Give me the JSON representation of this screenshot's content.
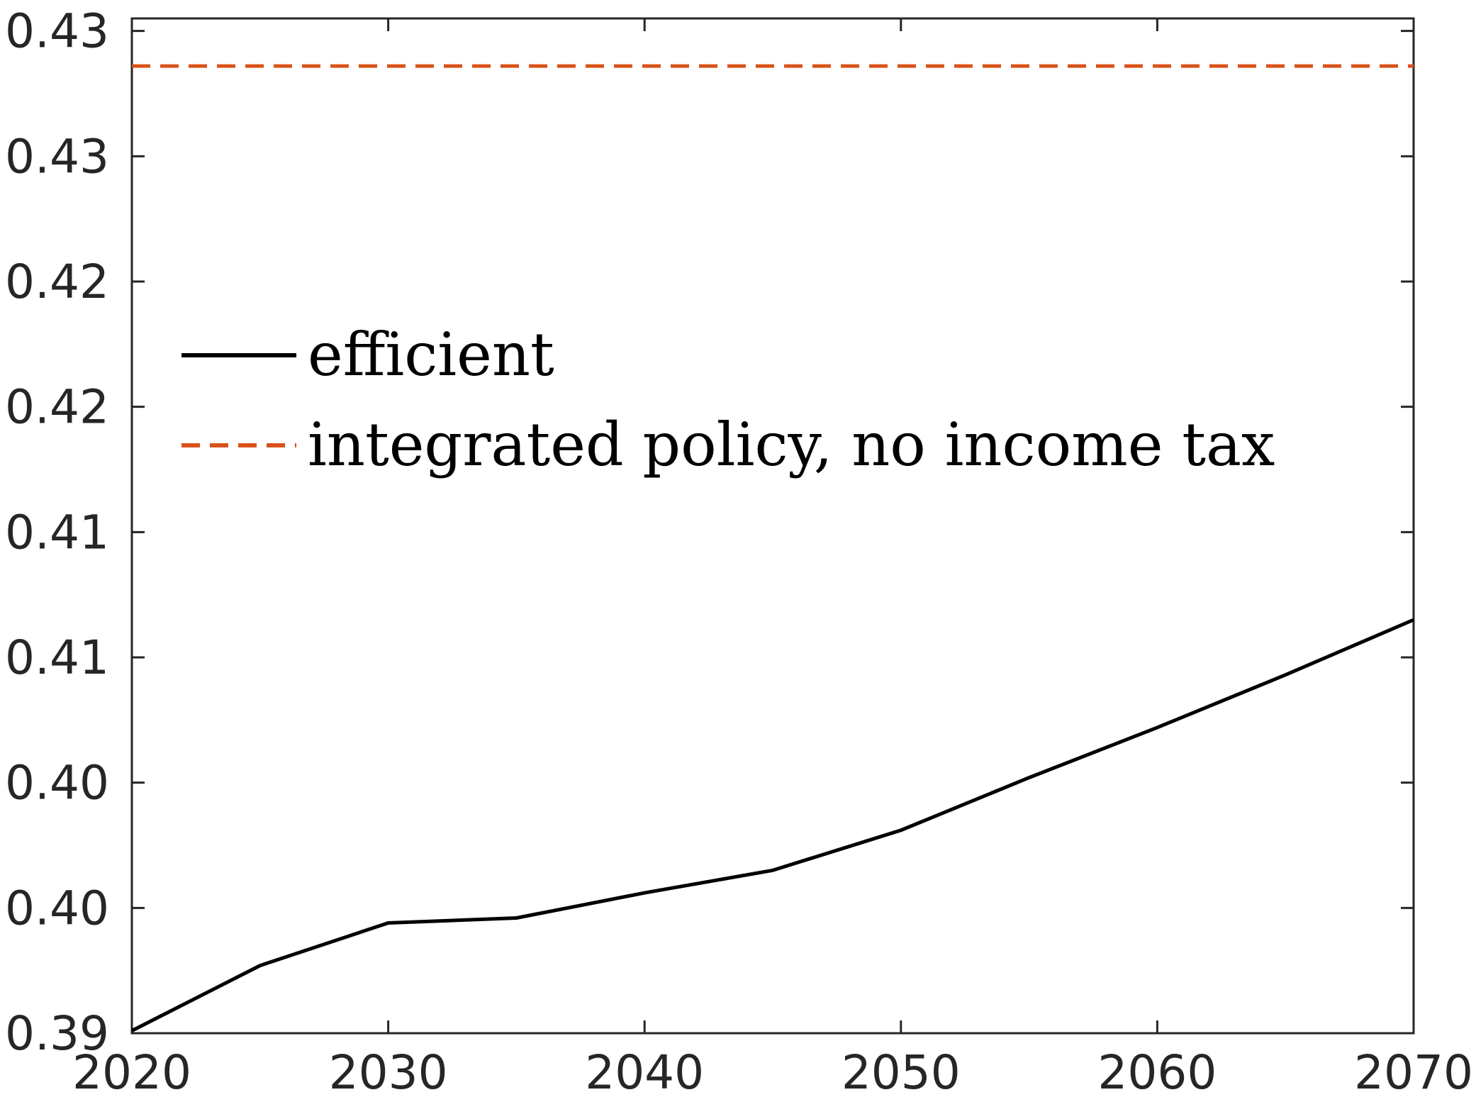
{
  "chart_data": {
    "type": "line",
    "title": "",
    "xlabel": "",
    "ylabel": "",
    "xlim": [
      2020,
      2070
    ],
    "ylim": [
      0.3925,
      0.433
    ],
    "x_ticks": [
      2020,
      2030,
      2040,
      2050,
      2060,
      2070
    ],
    "x_tick_labels": [
      "2020",
      "2030",
      "2040",
      "2050",
      "2060",
      "2070"
    ],
    "y_ticks": [
      0.3925,
      0.3975,
      0.4025,
      0.4075,
      0.4125,
      0.4175,
      0.4225,
      0.4275,
      0.4325
    ],
    "y_tick_labels": [
      "0.39",
      "0.40",
      "0.40",
      "0.41",
      "0.41",
      "0.42",
      "0.42",
      "0.43",
      "0.43"
    ],
    "grid": false,
    "legend": "center-left",
    "series": [
      {
        "name": "efficient",
        "color": "#000000",
        "dash": "solid",
        "x": [
          2020,
          2025,
          2030,
          2035,
          2040,
          2045,
          2050,
          2055,
          2060,
          2065,
          2070
        ],
        "y": [
          0.3926,
          0.3952,
          0.3969,
          0.3971,
          0.3981,
          0.399,
          0.4006,
          0.4027,
          0.4047,
          0.4068,
          0.409
        ]
      },
      {
        "name": "integrated policy, no income tax",
        "color": "#D95319",
        "dash": "dashed",
        "x": [
          2020,
          2070
        ],
        "y": [
          0.4311,
          0.4311
        ]
      }
    ]
  }
}
